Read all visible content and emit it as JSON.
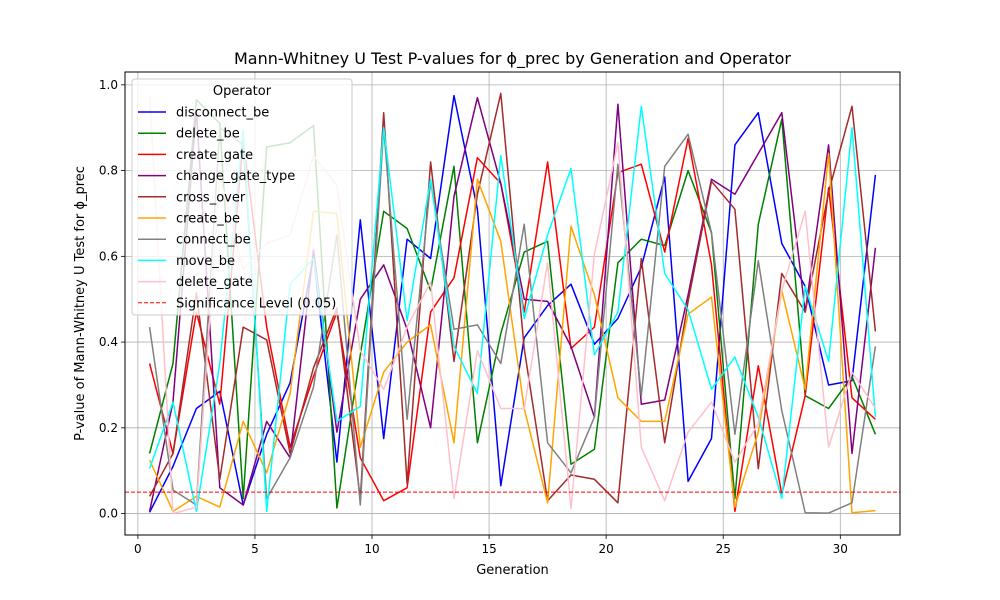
{
  "chart_data": {
    "type": "line",
    "title": "Mann-Whitney U Test P-values for ϕ_prec by Generation and Operator",
    "xlabel": "Generation",
    "ylabel": "P-value of Mann-Whitney U Test for ϕ_prec",
    "xlim": [
      -0.55,
      32.55
    ],
    "ylim": [
      -0.05,
      1.03
    ],
    "xticks": [
      0,
      5,
      10,
      15,
      20,
      25,
      30
    ],
    "yticks": [
      0.0,
      0.2,
      0.4,
      0.6,
      0.8,
      1.0
    ],
    "xtick_labels": [
      "0",
      "5",
      "10",
      "15",
      "20",
      "25",
      "30"
    ],
    "ytick_labels": [
      "0.0",
      "0.2",
      "0.4",
      "0.6",
      "0.8",
      "1.0"
    ],
    "grid": true,
    "legend": {
      "title": "Operator",
      "placement": "top-left"
    },
    "x": [
      0.5,
      1.5,
      2.5,
      3.5,
      4.5,
      5.5,
      6.5,
      7.5,
      8.5,
      9.5,
      10.5,
      11.5,
      12.5,
      13.5,
      14.5,
      15.5,
      16.5,
      17.5,
      18.5,
      19.5,
      20.5,
      21.5,
      22.5,
      23.5,
      24.5,
      25.5,
      26.5,
      27.5,
      28.5,
      29.5,
      30.5,
      31.5
    ],
    "series": [
      {
        "name": "disconnect_be",
        "color": "#0000ff",
        "values": [
          0.003,
          0.11,
          0.245,
          0.285,
          0.02,
          0.185,
          0.305,
          0.6,
          0.12,
          0.685,
          0.175,
          0.64,
          0.595,
          0.975,
          0.71,
          0.065,
          0.41,
          0.485,
          0.535,
          0.395,
          0.455,
          0.575,
          0.785,
          0.075,
          0.175,
          0.86,
          0.935,
          0.63,
          0.53,
          0.3,
          0.31,
          0.79
        ]
      },
      {
        "name": "delete_be",
        "color": "#008000",
        "values": [
          0.14,
          0.35,
          0.965,
          0.91,
          0.035,
          0.855,
          0.865,
          0.905,
          0.013,
          0.37,
          0.705,
          0.665,
          0.52,
          0.81,
          0.165,
          0.42,
          0.61,
          0.635,
          0.115,
          0.15,
          0.585,
          0.64,
          0.625,
          0.8,
          0.655,
          0.035,
          0.675,
          0.92,
          0.275,
          0.245,
          0.32,
          0.185
        ]
      },
      {
        "name": "create_gate",
        "color": "#ff0000",
        "values": [
          0.35,
          0.14,
          0.47,
          0.255,
          0.87,
          0.435,
          0.155,
          0.32,
          0.47,
          0.13,
          0.03,
          0.06,
          0.47,
          0.55,
          0.83,
          0.77,
          0.47,
          0.82,
          0.385,
          0.435,
          0.795,
          0.815,
          0.61,
          0.875,
          0.58,
          0.005,
          0.345,
          0.045,
          0.275,
          0.76,
          0.27,
          0.22
        ]
      },
      {
        "name": "change_gate_type",
        "color": "#800080",
        "values": [
          0.005,
          0.26,
          0.94,
          0.06,
          0.02,
          0.215,
          0.13,
          0.615,
          0.19,
          0.5,
          0.58,
          0.43,
          0.2,
          0.74,
          0.97,
          0.77,
          0.5,
          0.495,
          0.39,
          0.225,
          0.955,
          0.255,
          0.265,
          0.51,
          0.78,
          0.745,
          0.84,
          0.935,
          0.47,
          0.86,
          0.14,
          0.62
        ]
      },
      {
        "name": "cross_over",
        "color": "#a52a2a",
        "values": [
          0.04,
          0.14,
          0.515,
          0.08,
          0.435,
          0.405,
          0.14,
          0.34,
          0.48,
          0.035,
          0.935,
          0.07,
          0.82,
          0.355,
          0.745,
          0.98,
          0.385,
          0.03,
          0.09,
          0.08,
          0.025,
          0.595,
          0.165,
          0.495,
          0.775,
          0.71,
          0.105,
          0.56,
          0.47,
          0.75,
          0.95,
          0.425
        ]
      },
      {
        "name": "create_be",
        "color": "#ffa500",
        "values": [
          0.125,
          0.005,
          0.04,
          0.015,
          0.215,
          0.095,
          0.28,
          0.705,
          0.7,
          0.155,
          0.33,
          0.4,
          0.44,
          0.165,
          0.78,
          0.635,
          0.245,
          0.025,
          0.67,
          0.51,
          0.27,
          0.215,
          0.215,
          0.465,
          0.505,
          0.015,
          0.19,
          0.52,
          0.29,
          0.84,
          0.002,
          0.007
        ]
      },
      {
        "name": "connect_be",
        "color": "#808080",
        "values": [
          0.435,
          0.055,
          0.02,
          0.9,
          0.86,
          0.035,
          0.13,
          0.295,
          0.65,
          0.02,
          0.9,
          0.22,
          0.775,
          0.43,
          0.44,
          0.35,
          0.675,
          0.165,
          0.095,
          0.225,
          0.815,
          0.275,
          0.81,
          0.885,
          0.655,
          0.185,
          0.59,
          0.24,
          0.002,
          0.001,
          0.025,
          0.39
        ]
      },
      {
        "name": "move_be",
        "color": "#00ffff",
        "values": [
          0.105,
          0.26,
          0.005,
          0.35,
          0.895,
          0.005,
          0.535,
          0.595,
          0.215,
          0.25,
          0.9,
          0.45,
          0.78,
          0.39,
          0.28,
          0.835,
          0.455,
          0.65,
          0.805,
          0.37,
          0.47,
          0.95,
          0.56,
          0.475,
          0.29,
          0.365,
          0.225,
          0.035,
          0.53,
          0.355,
          0.9,
          0.225
        ]
      },
      {
        "name": "delete_gate",
        "color": "#ffc0cb",
        "values": [
          0.975,
          0.0,
          0.015,
          0.785,
          0.57,
          0.63,
          0.65,
          0.835,
          0.765,
          0.38,
          0.29,
          0.435,
          0.54,
          0.035,
          0.38,
          0.245,
          0.245,
          0.585,
          0.012,
          0.605,
          0.865,
          0.155,
          0.03,
          0.19,
          0.26,
          0.12,
          0.21,
          0.52,
          0.705,
          0.155,
          0.33,
          0.245
        ]
      }
    ],
    "reference_line": {
      "name": "Significance Level (0.05)",
      "y": 0.05,
      "color": "#ff0000",
      "style": "dashed"
    }
  }
}
